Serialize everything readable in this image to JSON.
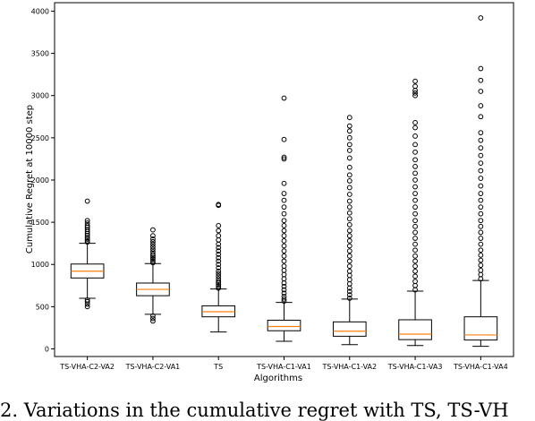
{
  "chart_data": {
    "type": "box",
    "xlabel": "Algorithms",
    "ylabel": "Cumulative Regret at 10000 step",
    "ylim": [
      -90,
      4100
    ],
    "yticks": [
      0,
      500,
      1000,
      1500,
      2000,
      2500,
      3000,
      3500,
      4000
    ],
    "grid": false,
    "colors": {
      "box": "#000000",
      "median": "#ff7f0e"
    },
    "categories": [
      "TS-VHA-C2-VA2",
      "TS-VHA-C2-VA1",
      "TS",
      "TS-VHA-C1-VA1",
      "TS-VHA-C1-VA2",
      "TS-VHA-C1-VA3",
      "TS-VHA-C1-VA4"
    ],
    "boxes": [
      {
        "whisker_low": 600,
        "q1": 840,
        "median": 920,
        "q3": 1005,
        "whisker_high": 1250,
        "outliers": [
          500,
          530,
          560,
          580,
          1265,
          1280,
          1300,
          1320,
          1345,
          1365,
          1390,
          1415,
          1440,
          1460,
          1490,
          1520,
          1750
        ]
      },
      {
        "whisker_low": 410,
        "q1": 630,
        "median": 705,
        "q3": 780,
        "whisker_high": 1010,
        "outliers": [
          330,
          360,
          390,
          1020,
          1040,
          1060,
          1080,
          1100,
          1120,
          1150,
          1180,
          1210,
          1240,
          1270,
          1300,
          1340,
          1410
        ]
      },
      {
        "whisker_low": 200,
        "q1": 380,
        "median": 440,
        "q3": 510,
        "whisker_high": 710,
        "outliers": [
          720,
          740,
          760,
          780,
          800,
          830,
          860,
          890,
          920,
          960,
          1000,
          1040,
          1080,
          1120,
          1160,
          1200,
          1240,
          1290,
          1340,
          1400,
          1460,
          1700,
          1710
        ]
      },
      {
        "whisker_low": 90,
        "q1": 215,
        "median": 265,
        "q3": 340,
        "whisker_high": 550,
        "outliers": [
          565,
          590,
          620,
          660,
          700,
          740,
          780,
          830,
          880,
          930,
          980,
          1040,
          1100,
          1160,
          1220,
          1280,
          1340,
          1400,
          1460,
          1520,
          1600,
          1680,
          1760,
          1840,
          1960,
          2250,
          2270,
          2480,
          2970
        ]
      },
      {
        "whisker_low": 50,
        "q1": 150,
        "median": 210,
        "q3": 320,
        "whisker_high": 590,
        "outliers": [
          600,
          640,
          680,
          720,
          770,
          820,
          870,
          920,
          980,
          1040,
          1100,
          1160,
          1220,
          1280,
          1340,
          1400,
          1470,
          1540,
          1610,
          1680,
          1750,
          1830,
          1910,
          1990,
          2060,
          2150,
          2260,
          2350,
          2420,
          2500,
          2580,
          2640,
          2740
        ]
      },
      {
        "whisker_low": 40,
        "q1": 110,
        "median": 175,
        "q3": 345,
        "whisker_high": 685,
        "outliers": [
          700,
          750,
          800,
          860,
          920,
          980,
          1040,
          1100,
          1170,
          1240,
          1310,
          1380,
          1450,
          1520,
          1600,
          1680,
          1760,
          1840,
          1920,
          2000,
          2080,
          2160,
          2240,
          2330,
          2420,
          2520,
          2620,
          2680,
          3000,
          3030,
          3060,
          3110,
          3170
        ]
      },
      {
        "whisker_low": 30,
        "q1": 105,
        "median": 165,
        "q3": 380,
        "whisker_high": 810,
        "outliers": [
          830,
          880,
          930,
          990,
          1050,
          1110,
          1170,
          1240,
          1310,
          1380,
          1450,
          1520,
          1600,
          1680,
          1760,
          1840,
          1930,
          2020,
          2110,
          2200,
          2290,
          2380,
          2470,
          2560,
          2750,
          2880,
          3050,
          3180,
          3320,
          3920
        ]
      }
    ]
  },
  "caption": "2. Variations in the cumulative regret with TS, TS-VH"
}
